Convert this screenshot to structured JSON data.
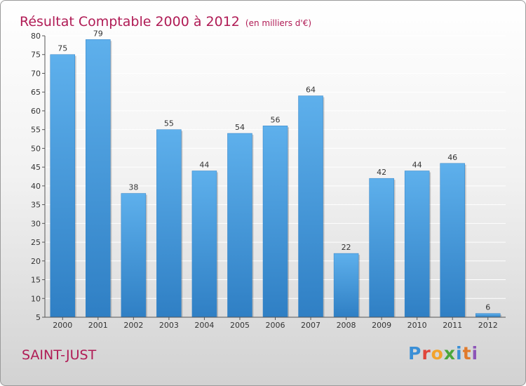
{
  "chart_data": {
    "type": "bar",
    "title": "Résultat Comptable 2000 à 2012",
    "subtitle": "(en milliers d'€)",
    "categories": [
      "2000",
      "2001",
      "2002",
      "2003",
      "2004",
      "2005",
      "2006",
      "2007",
      "2008",
      "2009",
      "2010",
      "2011",
      "2012"
    ],
    "values": [
      75,
      79,
      38,
      55,
      44,
      54,
      56,
      64,
      22,
      42,
      44,
      46,
      6
    ],
    "ylim": [
      5,
      80
    ],
    "yticks": [
      5,
      10,
      15,
      20,
      25,
      30,
      35,
      40,
      45,
      50,
      55,
      60,
      65,
      70,
      75,
      80
    ],
    "xlabel": "",
    "ylabel": "",
    "grid": true,
    "bar_color": "#4a9ee0"
  },
  "place": "SAINT-JUST",
  "logo": [
    "P",
    "r",
    "o",
    "x",
    "i",
    "t",
    "i"
  ]
}
